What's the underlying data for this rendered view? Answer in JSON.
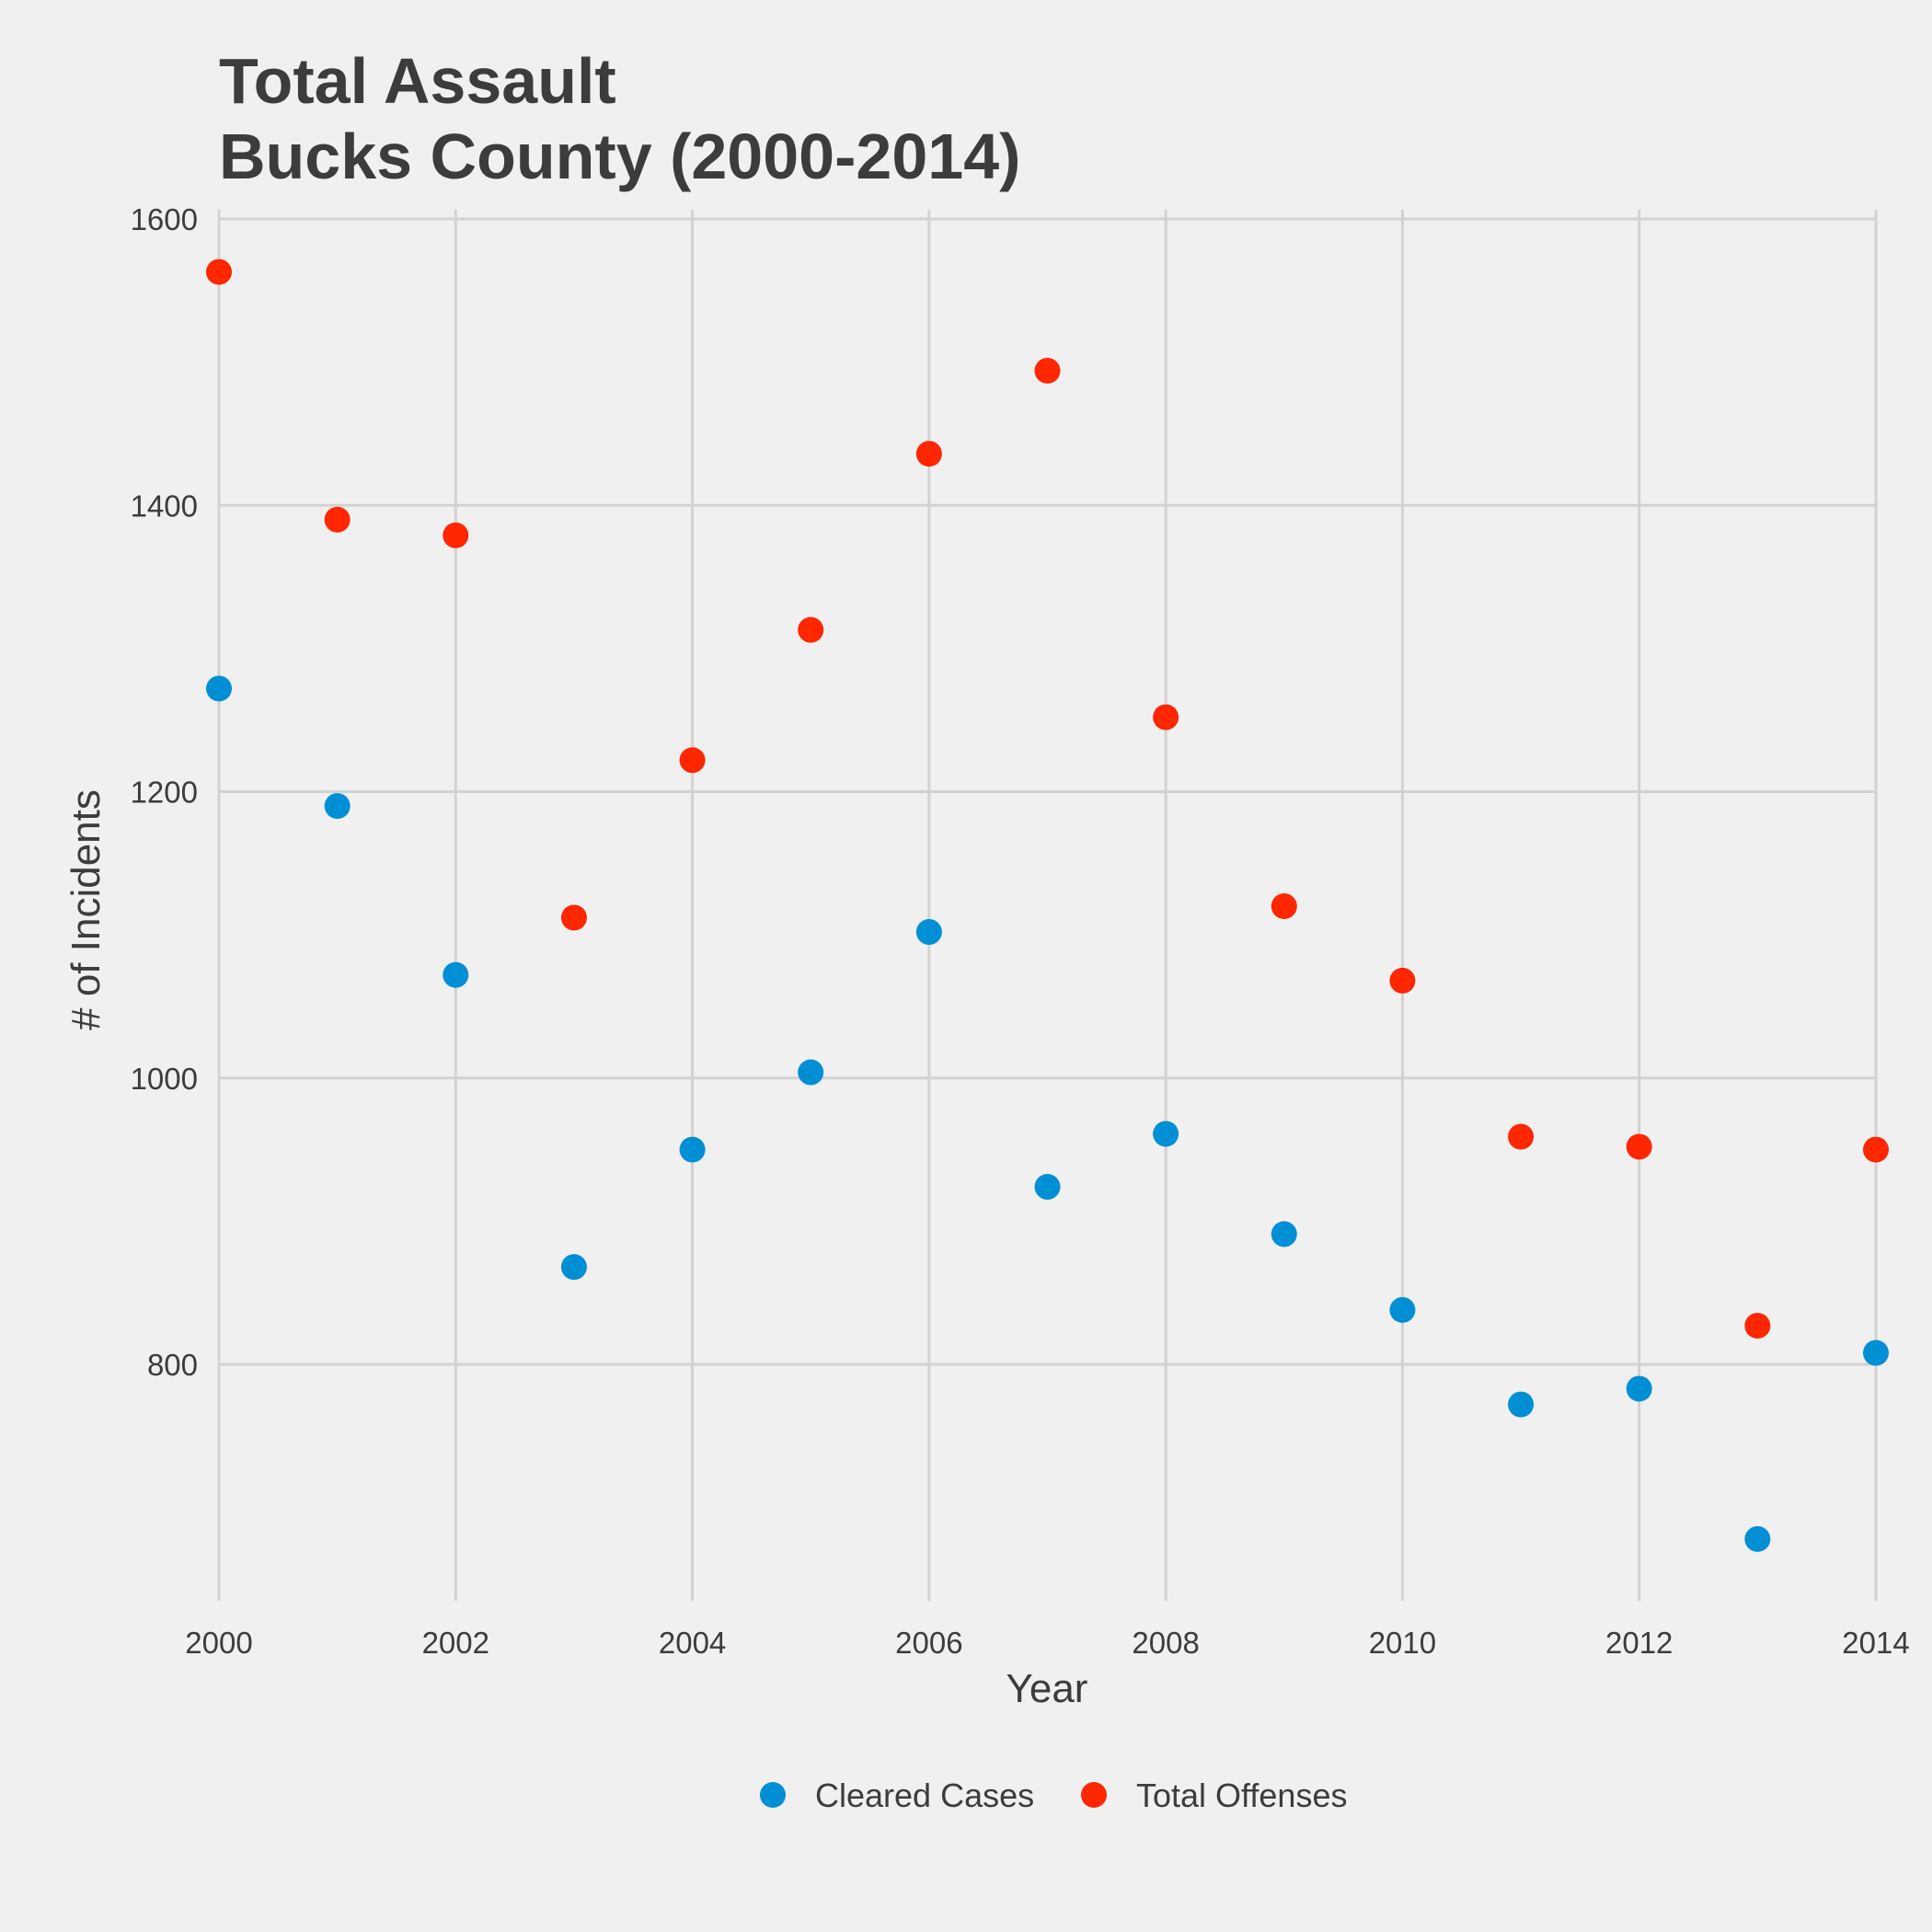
{
  "chart_data": {
    "type": "scatter",
    "title": "Total Assault",
    "subtitle": "Bucks County (2000-2014)",
    "xlabel": "Year",
    "ylabel": "# of Incidents",
    "xlim": [
      2000,
      2014
    ],
    "ylim": [
      660,
      1610
    ],
    "x_ticks": [
      2000,
      2002,
      2004,
      2006,
      2008,
      2010,
      2012,
      2014
    ],
    "y_ticks": [
      800,
      1000,
      1200,
      1400,
      1600
    ],
    "grid": true,
    "legend_position": "bottom",
    "x": [
      2000,
      2001,
      2002,
      2003,
      2004,
      2005,
      2006,
      2007,
      2008,
      2009,
      2010,
      2011,
      2012,
      2013,
      2014
    ],
    "series": [
      {
        "name": "Cleared Cases",
        "color": "#008fd5",
        "values": [
          1272,
          1190,
          1072,
          868,
          950,
          1004,
          1102,
          924,
          961,
          891,
          838,
          772,
          783,
          678,
          808
        ]
      },
      {
        "name": "Total Offenses",
        "color": "#ff2700",
        "values": [
          1563,
          1390,
          1379,
          1112,
          1222,
          1313,
          1436,
          1494,
          1252,
          1120,
          1068,
          959,
          952,
          827,
          950
        ]
      }
    ]
  }
}
